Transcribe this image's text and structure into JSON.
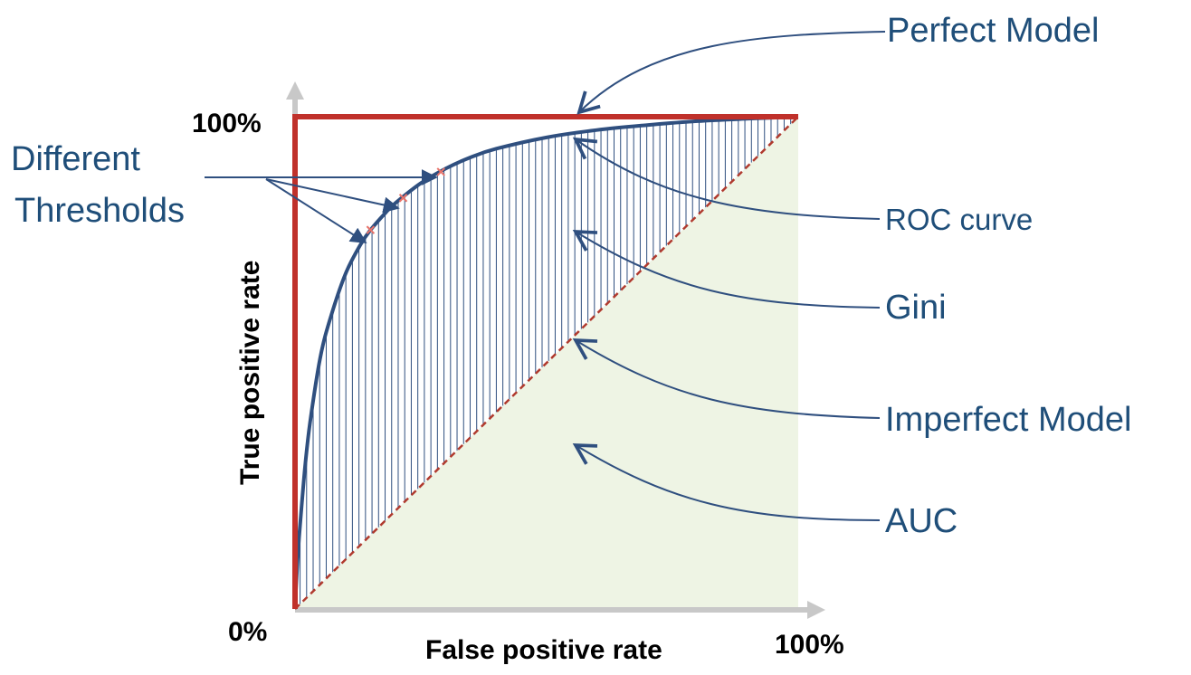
{
  "axes": {
    "x_label": "False positive rate",
    "y_label": "True positive rate",
    "origin_label": "0%",
    "x_max_label": "100%",
    "y_max_label": "100%"
  },
  "annotations": {
    "perfect_model": "Perfect Model",
    "roc_curve": "ROC curve",
    "gini": "Gini",
    "imperfect_model": "Imperfect Model",
    "auc": "AUC",
    "thresholds_line1": "Different",
    "thresholds_line2": "Thresholds"
  },
  "colors": {
    "perfect_model": "#c0312b",
    "roc_curve": "#2f4f7f",
    "annotation_text": "#1f4e79",
    "auc_fill": "#eef4e4",
    "hatch": "#2f4f7f",
    "axis_arrow": "#c8c8c8"
  },
  "chart_data": {
    "type": "line",
    "x_range": [
      0,
      100
    ],
    "y_range": [
      0,
      100
    ],
    "series": [
      {
        "kind": "perfect",
        "points": [
          [
            0,
            0
          ],
          [
            0,
            100
          ],
          [
            100,
            100
          ]
        ]
      },
      {
        "kind": "roc",
        "points": [
          [
            0,
            0
          ],
          [
            0.5,
            10
          ],
          [
            1,
            17
          ],
          [
            2,
            29
          ],
          [
            3,
            38
          ],
          [
            5,
            51
          ],
          [
            7,
            59
          ],
          [
            10,
            68
          ],
          [
            13,
            74
          ],
          [
            15,
            77
          ],
          [
            18,
            80.5
          ],
          [
            20,
            82.5
          ],
          [
            25,
            86.5
          ],
          [
            30,
            89.5
          ],
          [
            35,
            91.8
          ],
          [
            40,
            93.5
          ],
          [
            50,
            95.8
          ],
          [
            60,
            97.3
          ],
          [
            70,
            98.3
          ],
          [
            80,
            99.1
          ],
          [
            90,
            99.6
          ],
          [
            100,
            100
          ]
        ]
      },
      {
        "kind": "diagonal",
        "points": [
          [
            0,
            0
          ],
          [
            100,
            100
          ]
        ]
      }
    ],
    "thresholds": [
      [
        15,
        77
      ],
      [
        21.5,
        83.5
      ],
      [
        29,
        88.8
      ]
    ]
  }
}
